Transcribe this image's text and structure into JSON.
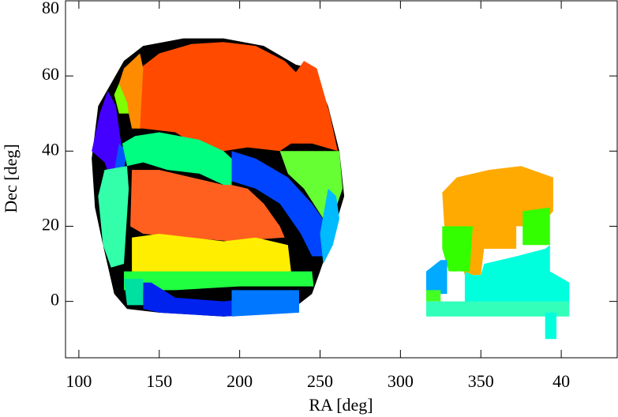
{
  "chart_data": {
    "type": "region",
    "xlabel": "RA [deg]",
    "ylabel": "Dec [deg]",
    "xlim": [
      91.7,
      434.8
    ],
    "ylim": [
      -15,
      80
    ],
    "xticks": [
      100,
      150,
      200,
      250,
      300,
      350,
      {
        "value": 400,
        "label": "40"
      }
    ],
    "yticks": [
      0,
      20,
      40,
      60,
      80
    ],
    "regions": [
      {
        "color": "#000000",
        "ra": [
          108,
          112,
          120,
          128,
          140,
          165,
          190,
          215,
          235,
          245,
          255,
          262,
          265,
          258,
          250,
          245,
          230,
          190,
          150,
          130,
          122,
          115,
          110
        ],
        "dec": [
          38,
          52,
          58,
          64,
          68,
          70,
          70,
          68,
          63,
          62,
          52,
          40,
          28,
          18,
          8,
          2,
          -3,
          -4,
          -3,
          -2,
          2,
          15,
          25
        ]
      },
      {
        "color": "#ff4a00",
        "ra": [
          137,
          138,
          150,
          170,
          190,
          210,
          228,
          235,
          240,
          248,
          256,
          261,
          245,
          232,
          225,
          205,
          190,
          175,
          160,
          140
        ],
        "dec": [
          46,
          62,
          66,
          68.5,
          69,
          68,
          64,
          61,
          64,
          62,
          50,
          40,
          42,
          42,
          40,
          41,
          40,
          41,
          45,
          46
        ]
      },
      {
        "color": "#ff8c00",
        "ra": [
          125,
          128,
          138,
          140,
          138,
          133,
          130,
          126
        ],
        "dec": [
          58,
          62,
          66,
          62,
          46,
          46,
          52,
          55
        ]
      },
      {
        "color": "#80ff00",
        "ra": [
          122,
          125,
          130,
          131,
          125
        ],
        "dec": [
          55,
          58,
          53,
          50,
          50
        ]
      },
      {
        "color": "#4400ff",
        "ra": [
          108,
          113,
          118,
          123,
          127,
          122,
          116
        ],
        "dec": [
          40,
          50,
          56,
          52,
          40,
          30,
          37
        ]
      },
      {
        "color": "#0055ff",
        "ra": [
          120,
          125,
          130,
          126
        ],
        "dec": [
          30,
          42,
          40,
          30
        ]
      },
      {
        "color": "#00ff80",
        "ra": [
          127,
          135,
          150,
          175,
          190,
          195,
          195,
          175,
          155,
          140,
          130
        ],
        "dec": [
          42,
          44,
          45,
          43,
          40,
          38,
          30,
          34,
          35,
          37,
          36
        ]
      },
      {
        "color": "#33ffaa",
        "ra": [
          112,
          116,
          130,
          131,
          128,
          120,
          115
        ],
        "dec": [
          28,
          35,
          36,
          30,
          10,
          9,
          15
        ]
      },
      {
        "color": "#ff6020",
        "ra": [
          133,
          150,
          170,
          190,
          195,
          205,
          215,
          225,
          228,
          195,
          165,
          140,
          132
        ],
        "dec": [
          35,
          35,
          33,
          31,
          31,
          30,
          26,
          20,
          17,
          16,
          17,
          18,
          20
        ]
      },
      {
        "color": "#0044ff",
        "ra": [
          195,
          210,
          230,
          245,
          255,
          253,
          245,
          238,
          225,
          210,
          195
        ],
        "dec": [
          40,
          38,
          33,
          26,
          20,
          12,
          12,
          18,
          26,
          30,
          32
        ]
      },
      {
        "color": "#66ff33",
        "ra": [
          225,
          240,
          255,
          262,
          264,
          260,
          252,
          240,
          230
        ],
        "dec": [
          40,
          40,
          40,
          40,
          30,
          25,
          22,
          30,
          34
        ]
      },
      {
        "color": "#00bbff",
        "ra": [
          250,
          255,
          260,
          262,
          258,
          252
        ],
        "dec": [
          18,
          30,
          28,
          22,
          15,
          10
        ]
      },
      {
        "color": "#ffee00",
        "ra": [
          133,
          150,
          170,
          190,
          210,
          230,
          232,
          200,
          160,
          133
        ],
        "dec": [
          17,
          18,
          17,
          16,
          17,
          15,
          8,
          7,
          7,
          8
        ]
      },
      {
        "color": "#20ff40",
        "ra": [
          128,
          245,
          246,
          200,
          160,
          128
        ],
        "dec": [
          8,
          8,
          4,
          4,
          3,
          3
        ]
      },
      {
        "color": "#0022ee",
        "ra": [
          140,
          145,
          160,
          190,
          230,
          235,
          230,
          190,
          150,
          140
        ],
        "dec": [
          5,
          5,
          1,
          0,
          2,
          1,
          -3,
          -4,
          -3,
          -2
        ]
      },
      {
        "color": "#0077ff",
        "ra": [
          195,
          237,
          237,
          195
        ],
        "dec": [
          3,
          3,
          -3,
          -4
        ]
      },
      {
        "color": "#00e0a0",
        "ra": [
          128,
          140,
          140,
          130
        ],
        "dec": [
          6,
          6,
          -1,
          -1
        ]
      },
      {
        "color": "#ffaa00",
        "ra": [
          326,
          335,
          355,
          375,
          395,
          395,
          387,
          372,
          372,
          352,
          350,
          340,
          335,
          328
        ],
        "dec": [
          29,
          33,
          35,
          36,
          33,
          24,
          20,
          20,
          14,
          14,
          7,
          7,
          14,
          15
        ]
      },
      {
        "color": "#33ff00",
        "ra": [
          326,
          345,
          343,
          330,
          326
        ],
        "dec": [
          20,
          20,
          8,
          8,
          14
        ]
      },
      {
        "color": "#33ff00",
        "ra": [
          376,
          393,
          393,
          376
        ],
        "dec": [
          24,
          25,
          15,
          15
        ]
      },
      {
        "color": "#00ffdd",
        "ra": [
          345,
          350,
          352,
          372,
          390,
          393,
          393,
          405,
          405,
          340,
          340
        ],
        "dec": [
          7,
          7,
          10,
          12,
          14,
          15,
          8,
          5,
          -1,
          -1,
          8
        ]
      },
      {
        "color": "#00aaff",
        "ra": [
          316,
          325,
          329,
          329,
          316
        ],
        "dec": [
          8,
          11,
          11,
          2,
          2
        ]
      },
      {
        "color": "#44ff22",
        "ra": [
          316,
          325,
          325,
          316
        ],
        "dec": [
          3,
          3,
          0,
          0
        ]
      },
      {
        "color": "#33ffbb",
        "ra": [
          316,
          405,
          405,
          316
        ],
        "dec": [
          0,
          0,
          -4,
          -4
        ]
      },
      {
        "color": "#00ffdd",
        "ra": [
          390,
          397,
          397,
          390
        ],
        "dec": [
          -3,
          -3,
          -10,
          -10
        ]
      }
    ]
  }
}
